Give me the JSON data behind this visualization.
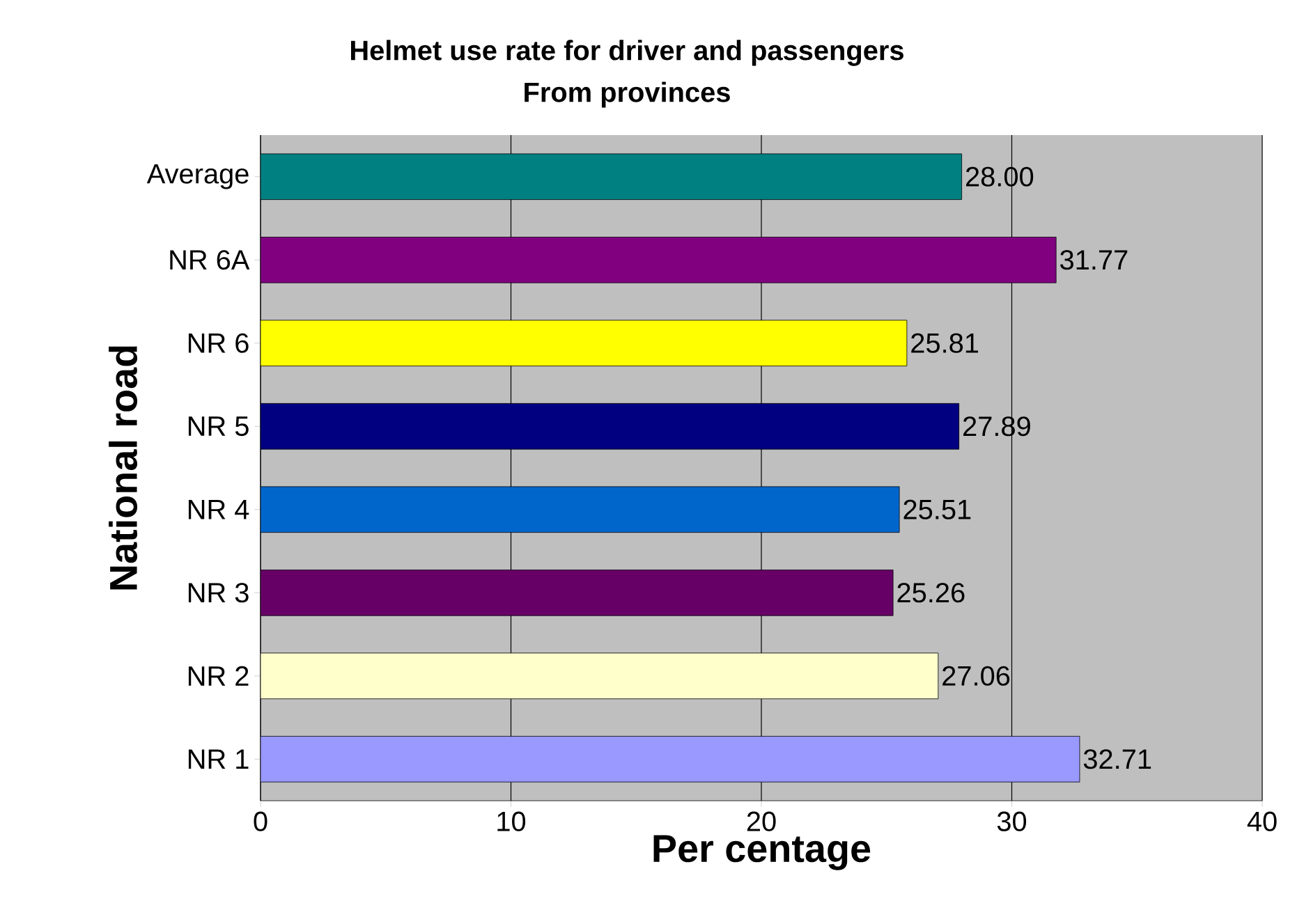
{
  "chart_data": {
    "type": "bar",
    "orientation": "horizontal",
    "title": "Helmet use rate for driver and passengers",
    "subtitle": "From provinces",
    "xlabel": "Per centage",
    "ylabel": "National road",
    "categories": [
      "Average",
      "NR 6A",
      "NR 6",
      "NR 5",
      "NR 4",
      "NR 3",
      "NR 2",
      "NR 1"
    ],
    "values": [
      28.0,
      31.77,
      25.81,
      27.89,
      25.51,
      25.26,
      27.06,
      32.71
    ],
    "value_labels": [
      "28.00",
      "31.77",
      "25.81",
      "27.89",
      "25.51",
      "25.26",
      "27.06",
      "32.71"
    ],
    "colors": [
      "#008080",
      "#800080",
      "#ffff00",
      "#000080",
      "#0066cc",
      "#660066",
      "#ffffcc",
      "#9999ff"
    ],
    "xlim": [
      0,
      40
    ],
    "xticks": [
      0,
      10,
      20,
      30,
      40
    ],
    "grid": "x"
  }
}
